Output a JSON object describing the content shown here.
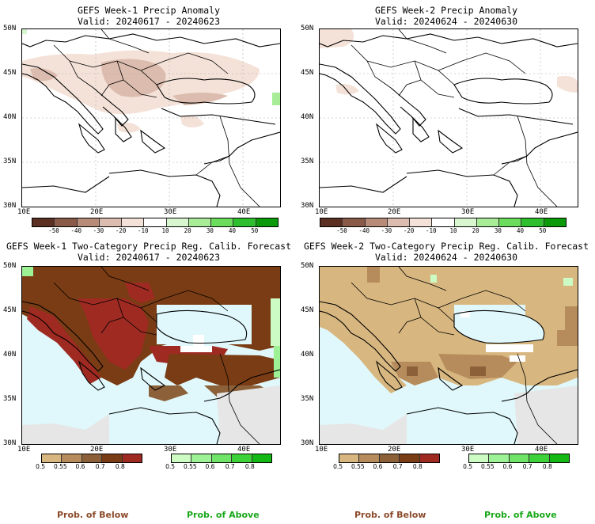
{
  "panels": [
    {
      "title": "GEFS Week-1 Precip Anomaly",
      "valid": "Valid: 20240617 - 20240623"
    },
    {
      "title": "GEFS Week-2 Precip Anomaly",
      "valid": "Valid: 20240624 - 20240630"
    },
    {
      "title": "GEFS Week-1 Two-Category Precip Reg. Calib. Forecast",
      "valid": "Valid: 20240617 - 20240623"
    },
    {
      "title": "GEFS Week-2 Two-Category Precip Reg. Calib. Forecast",
      "valid": "Valid: 20240624 - 20240630"
    }
  ],
  "lat_labels": [
    "50N",
    "45N",
    "40N",
    "35N",
    "30N"
  ],
  "lon_labels": [
    "10E",
    "20E",
    "30E",
    "40E"
  ],
  "anomaly_scale": {
    "labels": [
      "-50",
      "-40",
      "-30",
      "-20",
      "-10",
      "10",
      "20",
      "30",
      "40",
      "50"
    ],
    "colors": [
      "#5b2f22",
      "#8a5a48",
      "#b88a78",
      "#dcbcae",
      "#f4e2d8",
      "#ffffff",
      "#d8f7d0",
      "#a8ec98",
      "#6cdc5c",
      "#2ebf2e",
      "#0a9a0a"
    ]
  },
  "below_scale": {
    "labels": [
      "0.5",
      "0.55",
      "0.6",
      "0.7",
      "0.8"
    ],
    "colors": [
      "#d7b67f",
      "#b78c5c",
      "#8c6038",
      "#7a3c14",
      "#9e2a22"
    ]
  },
  "above_scale": {
    "labels": [
      "0.5",
      "0.55",
      "0.6",
      "0.7",
      "0.8"
    ],
    "colors": [
      "#ccfcc4",
      "#9cf294",
      "#70e468",
      "#3ed23a",
      "#14b814"
    ]
  },
  "legend": {
    "below": "Prob. of Below",
    "above": "Prob. of Above",
    "below_color": "#8b4a2a",
    "above_color": "#1aa81a"
  }
}
